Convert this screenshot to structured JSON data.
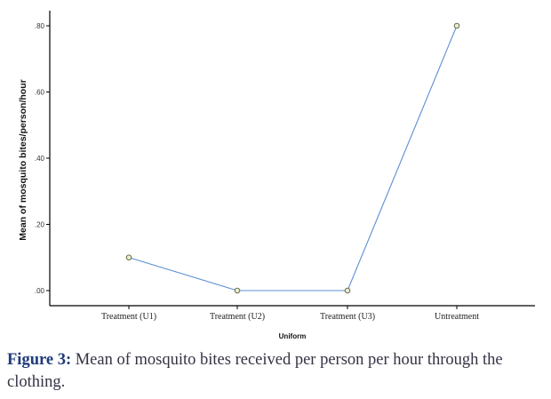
{
  "chart_data": {
    "type": "line",
    "categories": [
      "Treatment (U1)",
      "Treatment (U2)",
      "Treatment (U3)",
      "Untreatment"
    ],
    "series": [
      {
        "values": [
          0.1,
          0.0,
          0.0,
          0.8
        ]
      }
    ],
    "xlabel": "Uniform",
    "ylabel": "Mean of mosquito bites/person/hour",
    "ylim": [
      0,
      0.84
    ],
    "yticks": [
      0.0,
      0.2,
      0.4,
      0.6,
      0.8
    ],
    "ytick_labels": [
      ".00",
      ".20",
      ".40",
      ".60",
      ".80"
    ],
    "grid": false,
    "line_color": "#5b8fd1",
    "marker_fill": "#e9edcf",
    "marker_stroke": "#5a5a3a"
  },
  "caption": {
    "label": "Figure 3:",
    "text": "Mean of mosquito bites received per person per hour through the clothing."
  }
}
